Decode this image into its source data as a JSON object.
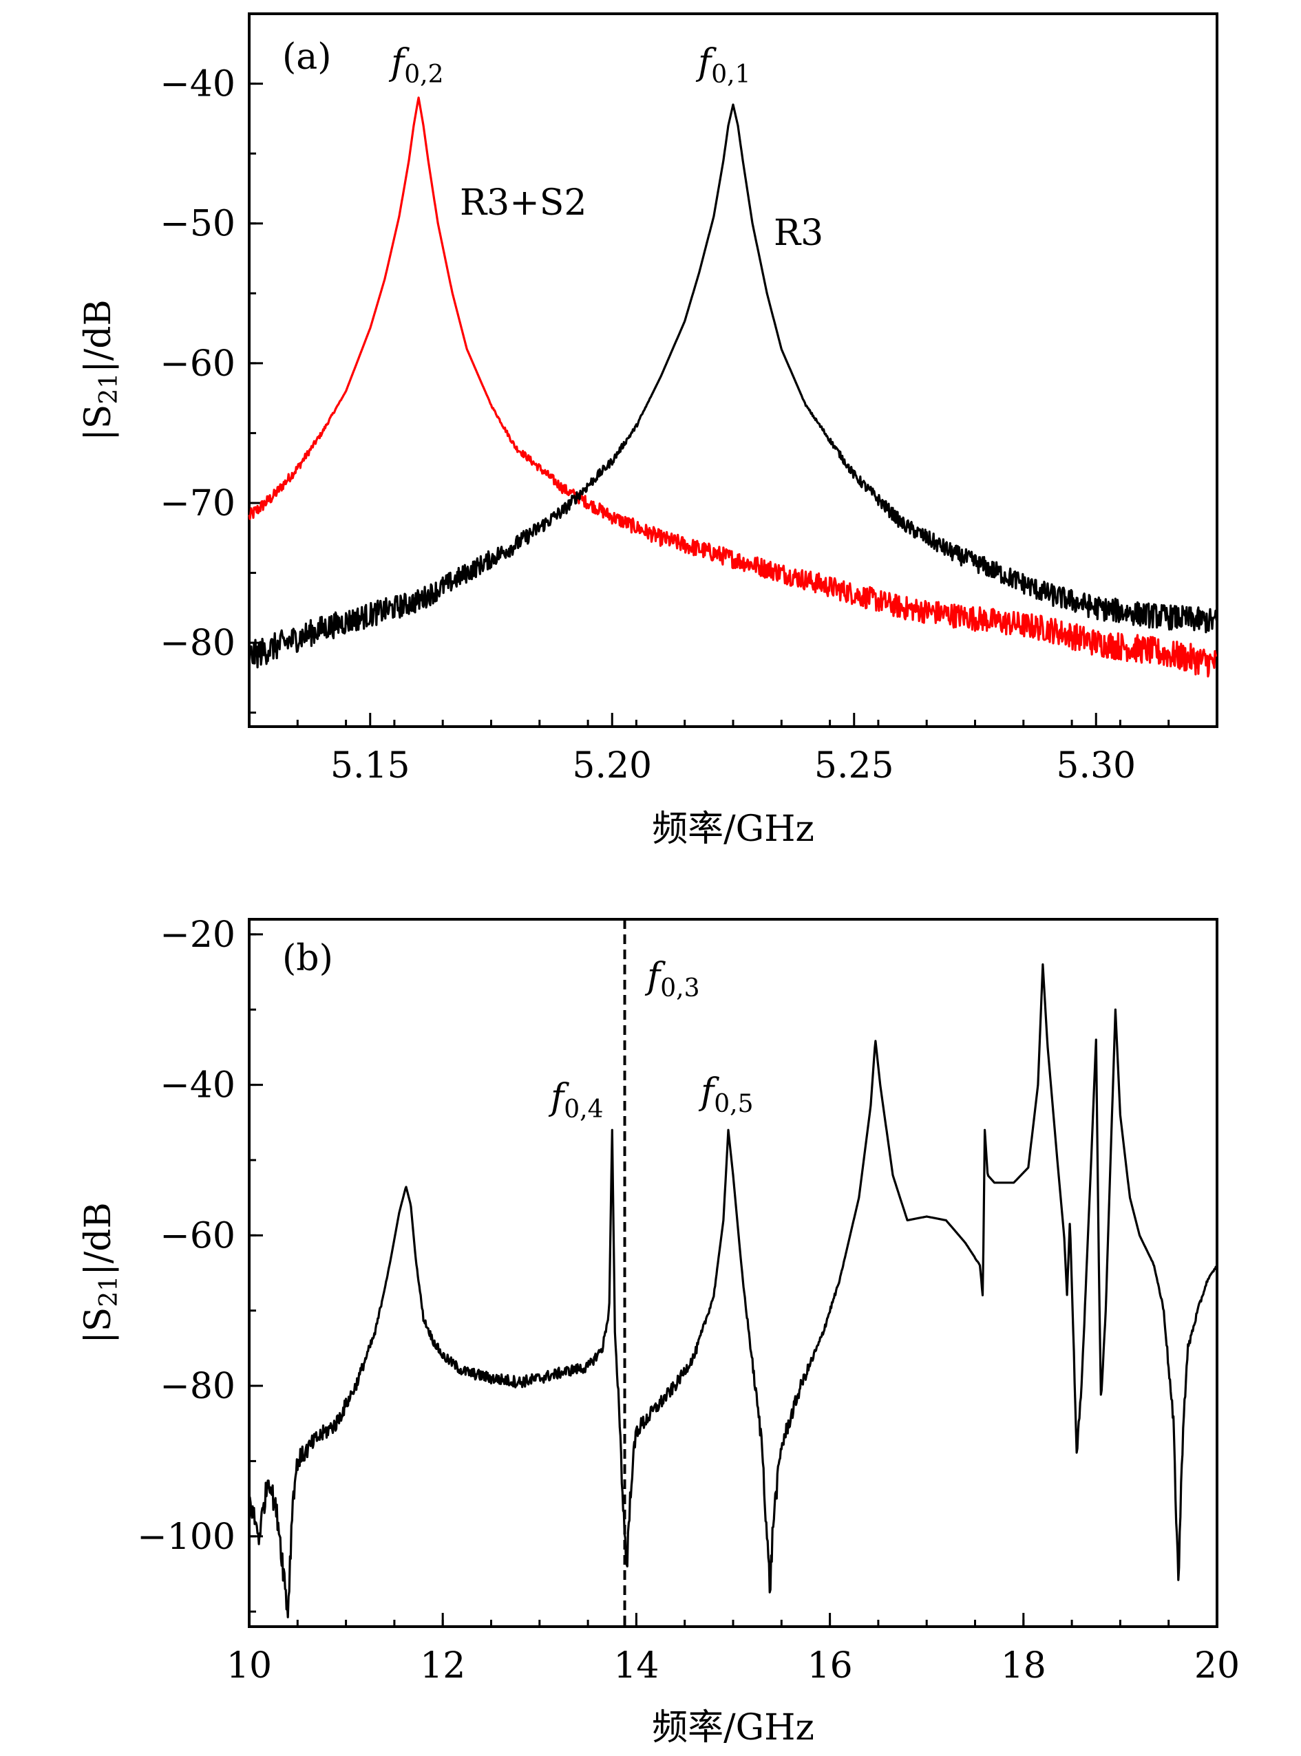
{
  "chart_data": [
    {
      "panel": "(a)",
      "type": "line",
      "xlabel": "频率/GHz",
      "ylabel": "|S21|/dB",
      "xlim": [
        5.125,
        5.325
      ],
      "ylim": [
        -86,
        -35
      ],
      "xticks": [
        "5.15",
        "5.20",
        "5.25",
        "5.30"
      ],
      "xtick_values": [
        5.15,
        5.2,
        5.25,
        5.3
      ],
      "yticks": [
        "−40",
        "−50",
        "−60",
        "−70",
        "−80"
      ],
      "ytick_values": [
        -40,
        -50,
        -60,
        -70,
        -80
      ],
      "series": [
        {
          "name": "R3+S2",
          "color": "#ff0000",
          "x": [
            5.125,
            5.13,
            5.135,
            5.14,
            5.145,
            5.15,
            5.153,
            5.156,
            5.158,
            5.159,
            5.16,
            5.161,
            5.162,
            5.164,
            5.167,
            5.17,
            5.175,
            5.18,
            5.185,
            5.19,
            5.2,
            5.21,
            5.22,
            5.23,
            5.24,
            5.25,
            5.26,
            5.27,
            5.28,
            5.29,
            5.3,
            5.31,
            5.325
          ],
          "values": [
            -71,
            -69.5,
            -67.5,
            -65,
            -62,
            -57.5,
            -54,
            -49.5,
            -45.5,
            -43,
            -41,
            -43,
            -45.5,
            -50,
            -55,
            -59,
            -63,
            -66,
            -67.5,
            -69,
            -71,
            -72.5,
            -73.5,
            -74.5,
            -75.5,
            -76.5,
            -77.5,
            -78,
            -78.5,
            -79,
            -80,
            -80.5,
            -81.5
          ]
        },
        {
          "name": "R3",
          "color": "#000000",
          "x": [
            5.125,
            5.14,
            5.15,
            5.16,
            5.17,
            5.18,
            5.19,
            5.2,
            5.205,
            5.21,
            5.215,
            5.218,
            5.221,
            5.223,
            5.224,
            5.225,
            5.226,
            5.227,
            5.229,
            5.232,
            5.235,
            5.24,
            5.25,
            5.26,
            5.27,
            5.28,
            5.29,
            5.3,
            5.31,
            5.325
          ],
          "values": [
            -81,
            -79,
            -78,
            -77,
            -75,
            -73,
            -70.5,
            -67,
            -64.5,
            -61,
            -57,
            -53.5,
            -49.5,
            -45.5,
            -43,
            -41.5,
            -43,
            -45.5,
            -50,
            -55,
            -59,
            -63,
            -68,
            -71.5,
            -73.5,
            -75,
            -76.5,
            -77.5,
            -78,
            -78.5
          ]
        }
      ],
      "annotations": {
        "panel_label": "(a)",
        "series_label_1": "R3+S2",
        "series_label_2": "R3",
        "peak_f02": "f0,2",
        "peak_f01": "f0,1"
      }
    },
    {
      "panel": "(b)",
      "type": "line",
      "xlabel": "频率/GHz",
      "ylabel": "|S21|/dB",
      "xlim": [
        10,
        20
      ],
      "ylim": [
        -112,
        -18
      ],
      "xticks": [
        "10",
        "12",
        "14",
        "16",
        "18",
        "20"
      ],
      "xtick_values": [
        10,
        12,
        14,
        16,
        18,
        20
      ],
      "yticks": [
        "−20",
        "−40",
        "−60",
        "−80",
        "−100"
      ],
      "ytick_values": [
        -20,
        -40,
        -60,
        -80,
        -100
      ],
      "dashed_line_x": 13.88,
      "series": [
        {
          "name": "S21",
          "color": "#000000",
          "x": [
            10.0,
            10.1,
            10.2,
            10.3,
            10.4,
            10.45,
            10.5,
            10.7,
            10.9,
            11.1,
            11.3,
            11.45,
            11.55,
            11.62,
            11.67,
            11.72,
            11.8,
            11.9,
            12.0,
            12.2,
            12.5,
            12.8,
            13.0,
            13.3,
            13.5,
            13.65,
            13.72,
            13.75,
            13.78,
            13.82,
            13.86,
            13.9,
            13.95,
            14.0,
            14.2,
            14.4,
            14.6,
            14.8,
            14.9,
            14.95,
            15.0,
            15.1,
            15.2,
            15.3,
            15.35,
            15.38,
            15.42,
            15.5,
            15.7,
            15.9,
            16.1,
            16.3,
            16.42,
            16.47,
            16.52,
            16.65,
            16.8,
            17.0,
            17.2,
            17.4,
            17.55,
            17.58,
            17.6,
            17.63,
            17.7,
            17.9,
            18.05,
            18.15,
            18.2,
            18.25,
            18.35,
            18.42,
            18.45,
            18.48,
            18.52,
            18.55,
            18.6,
            18.65,
            18.7,
            18.75,
            18.78,
            18.8,
            18.85,
            18.9,
            18.95,
            19.0,
            19.1,
            19.2,
            19.35,
            19.45,
            19.55,
            19.6,
            19.65,
            19.7,
            19.8,
            19.9,
            20.0
          ],
          "values": [
            -95,
            -100,
            -92,
            -98,
            -110,
            -95,
            -90,
            -87,
            -85,
            -80,
            -73,
            -64,
            -57,
            -53.5,
            -56,
            -63,
            -71,
            -74,
            -76,
            -78,
            -79,
            -79.5,
            -79,
            -78,
            -77.5,
            -75,
            -70,
            -46,
            -74,
            -82,
            -95,
            -104,
            -92,
            -86,
            -83,
            -80,
            -76,
            -68,
            -58,
            -46,
            -52,
            -66,
            -77,
            -88,
            -100,
            -107,
            -97,
            -88,
            -80,
            -74,
            -66,
            -55,
            -43,
            -34,
            -40,
            -52,
            -58,
            -57.5,
            -58,
            -61,
            -64,
            -68,
            -46,
            -52,
            -53,
            -53,
            -51,
            -40,
            -24,
            -35,
            -50,
            -60,
            -68,
            -58,
            -75,
            -90,
            -80,
            -65,
            -50,
            -34,
            -65,
            -82,
            -70,
            -50,
            -30,
            -44,
            -55,
            -60,
            -64,
            -70,
            -85,
            -106,
            -85,
            -75,
            -70,
            -66,
            -64
          ]
        }
      ],
      "annotations": {
        "panel_label": "(b)",
        "peak_f03": "f0,3",
        "peak_f04": "f0,4",
        "peak_f05": "f0,5"
      }
    }
  ],
  "labels": {
    "xlabel_a": "频率/GHz",
    "xlabel_b": "频率/GHz",
    "ylabel_a_prefix": "|S",
    "ylabel_a_sub": "21",
    "ylabel_a_suffix": "|/dB",
    "ylabel_b_prefix": "|S",
    "ylabel_b_sub": "21",
    "ylabel_b_suffix": "|/dB"
  }
}
